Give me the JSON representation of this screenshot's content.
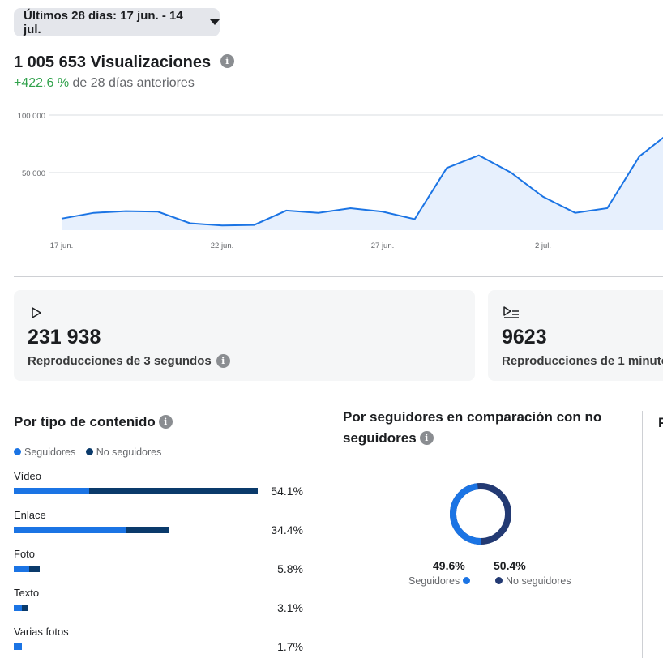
{
  "header": {
    "date_range_label": "Últimos 28 días: 17 jun. - 14 jul.",
    "total_label": "1 005 653 Visualizaciones",
    "delta_value": "+422,6 %",
    "delta_text": " de 28 días anteriores"
  },
  "chart_data": {
    "type": "area",
    "x_ticks": [
      "17 jun.",
      "22 jun.",
      "27 jun.",
      "2 jul."
    ],
    "y_ticks": [
      "100 000",
      "50 000"
    ],
    "ylim": [
      0,
      100000
    ],
    "x": [
      "17 jun.",
      "18 jun.",
      "19 jun.",
      "20 jun.",
      "21 jun.",
      "22 jun.",
      "23 jun.",
      "24 jun.",
      "25 jun.",
      "26 jun.",
      "27 jun.",
      "28 jun.",
      "29 jun.",
      "30 jun.",
      "1 jul.",
      "2 jul.",
      "3 jul.",
      "4 jul.",
      "5 jul.",
      "6 jul.",
      "7 jul."
    ],
    "values": [
      10000,
      15000,
      16500,
      16000,
      6000,
      4000,
      4500,
      17000,
      15000,
      19000,
      16000,
      9500,
      54000,
      65000,
      50000,
      29000,
      15000,
      19000,
      64000,
      86000,
      93000
    ],
    "grid": true,
    "color": "#1b74e4",
    "fill": "#e7f0fd"
  },
  "cards": [
    {
      "icon": "play-icon",
      "value": "231 938",
      "label": "Reproducciones de 3 segundos"
    },
    {
      "icon": "playlist-icon",
      "value": "9623",
      "label": "Reproducciones de 1 minuto"
    }
  ],
  "content_type": {
    "title": "Por tipo de contenido",
    "legend": [
      "Seguidores",
      "No seguidores"
    ],
    "colors": {
      "followers": "#1b74e4",
      "non_followers": "#0a3a6b"
    },
    "rows": [
      {
        "name": "Vídeo",
        "pct": "54.1%",
        "total": 54.1,
        "followers_share": 0.31
      },
      {
        "name": "Enlace",
        "pct": "34.4%",
        "total": 34.4,
        "followers_share": 0.72
      },
      {
        "name": "Foto",
        "pct": "5.8%",
        "total": 5.8,
        "followers_share": 0.6
      },
      {
        "name": "Texto",
        "pct": "3.1%",
        "total": 3.1,
        "followers_share": 0.6
      },
      {
        "name": "Varias fotos",
        "pct": "1.7%",
        "total": 1.7,
        "followers_share": 1.0
      }
    ]
  },
  "followers_split": {
    "title_line1": "Por seguidores en comparación con no",
    "title_line2": "seguidores",
    "followers_pct": "49.6%",
    "non_followers_pct": "50.4%",
    "followers_value": 49.6,
    "followers_label": "Seguidores",
    "non_followers_label": "No seguidores",
    "colors": {
      "followers": "#1b74e4",
      "non_followers": "#233a73"
    }
  },
  "third_section": {
    "title_fragment": "P"
  }
}
